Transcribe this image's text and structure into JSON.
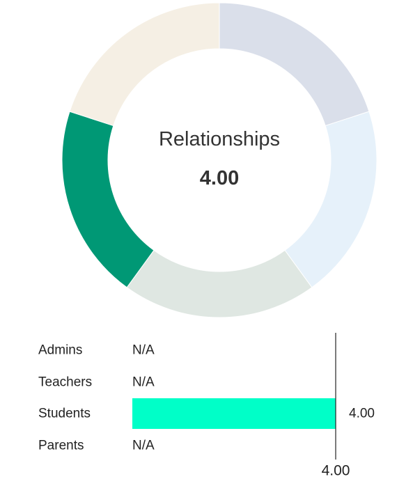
{
  "chart_data": [
    {
      "type": "pie",
      "variant": "donut",
      "center_title": "Relationships",
      "center_value": "4.00",
      "slices": [
        {
          "value": 1,
          "color": "#DADFEA"
        },
        {
          "value": 1,
          "color": "#E6F1FA"
        },
        {
          "value": 1,
          "color": "#DFE7E2"
        },
        {
          "value": 1,
          "color": "#009875"
        },
        {
          "value": 1,
          "color": "#F5EFE4"
        }
      ]
    },
    {
      "type": "bar",
      "orientation": "horizontal",
      "categories": [
        "Admins",
        "Teachers",
        "Students",
        "Parents"
      ],
      "values": [
        null,
        null,
        4.0,
        null
      ],
      "value_labels": [
        "N/A",
        "N/A",
        "4.00",
        "N/A"
      ],
      "xlim": [
        0,
        4
      ],
      "x_ticks": [
        "4.00"
      ],
      "bar_color": "#00FFC8",
      "axis_color": "#222222"
    }
  ]
}
